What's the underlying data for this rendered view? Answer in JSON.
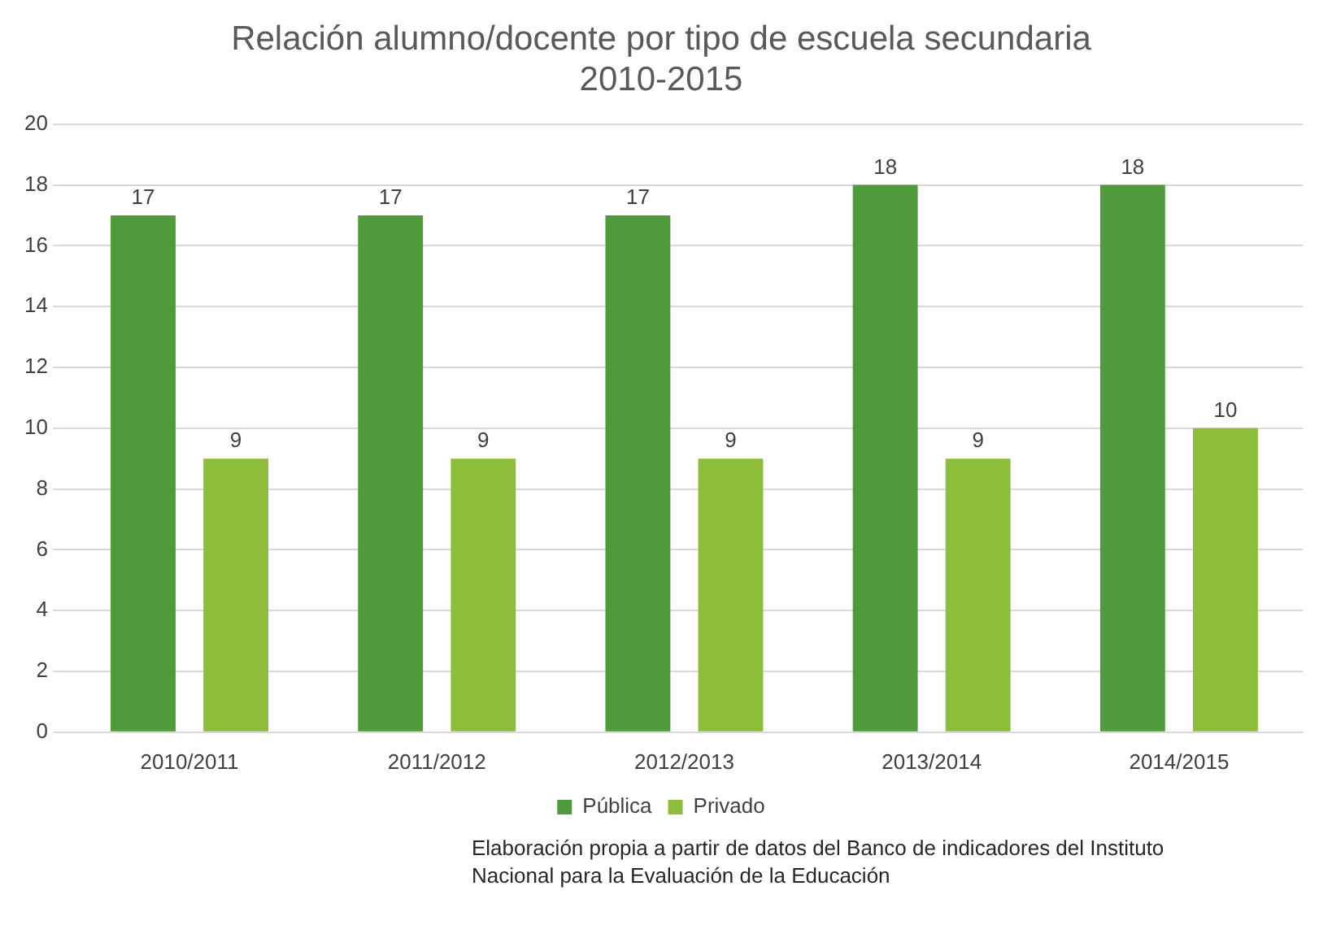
{
  "chart_data": {
    "type": "bar",
    "title": "Relación alumno/docente por tipo de escuela secundaria\n2010-2015",
    "categories": [
      "2010/2011",
      "2011/2012",
      "2012/2013",
      "2013/2014",
      "2014/2015"
    ],
    "series": [
      {
        "name": "Pública",
        "color": "#4f9a3b",
        "values": [
          17,
          17,
          17,
          18,
          18
        ]
      },
      {
        "name": "Privado",
        "color": "#8dbd3a",
        "values": [
          9,
          9,
          9,
          9,
          10
        ]
      }
    ],
    "ylim": [
      0,
      20
    ],
    "yticks": [
      0,
      2,
      4,
      6,
      8,
      10,
      12,
      14,
      16,
      18,
      20
    ],
    "grid": "y",
    "legend": "bottom",
    "data_labels": true,
    "annotations": [
      "Elaboración propia a partir de datos del Banco de indicadores del Instituto Nacional para la Evaluación de la Educación"
    ]
  }
}
